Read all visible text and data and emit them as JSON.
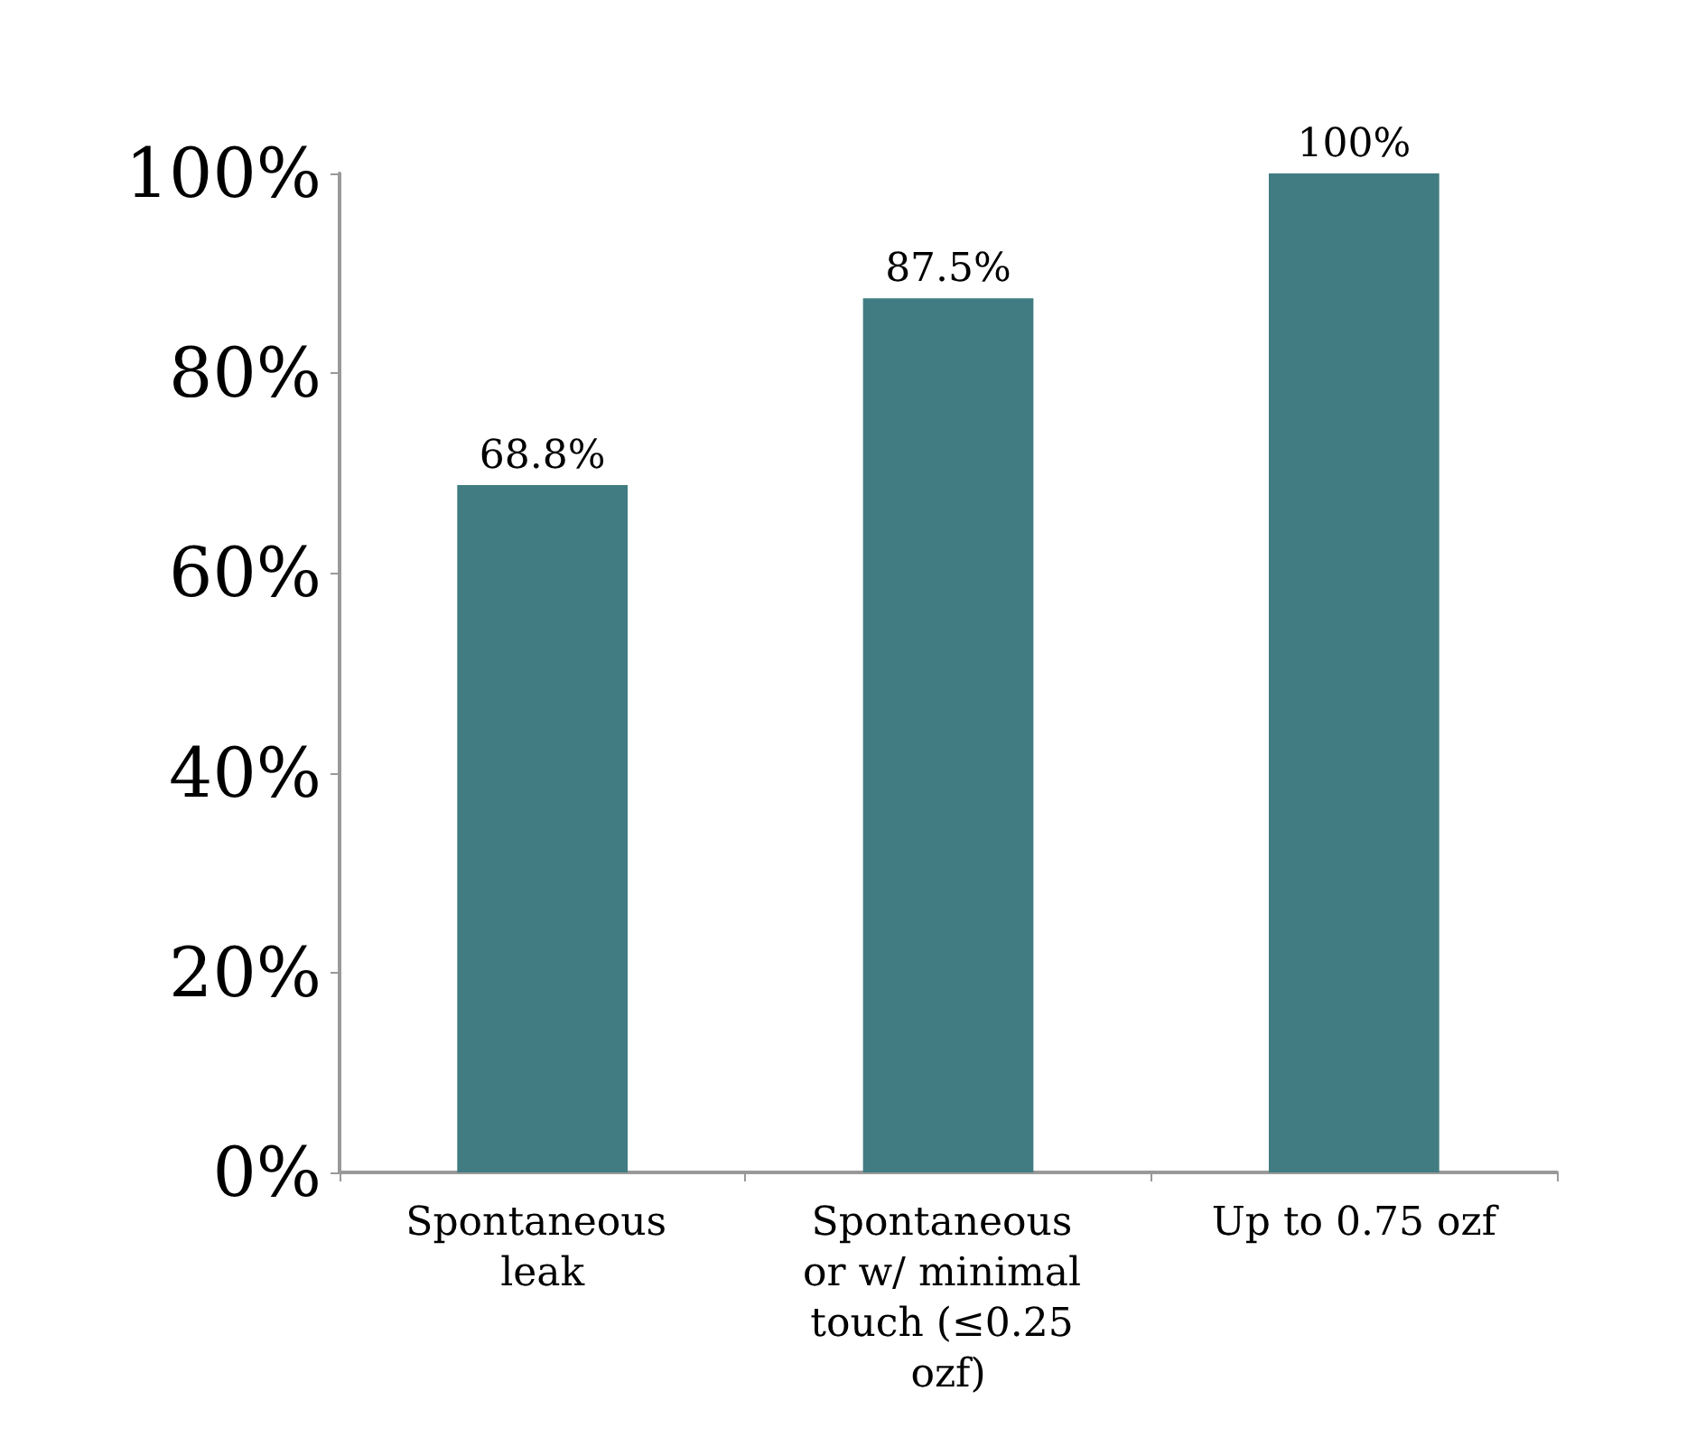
{
  "chart_data": {
    "type": "bar",
    "categories": [
      "Spontaneous leak",
      "Spontaneous or w/ minimal touch (≤0.25 ozf)",
      "Up to 0.75 ozf"
    ],
    "values": [
      68.8,
      87.5,
      100
    ],
    "color": "#417c82",
    "value_labels": [
      "68.8%",
      "87.5%",
      "100%"
    ],
    "ylim": [
      0,
      100
    ],
    "yticks": [
      {
        "value": 0,
        "label": "0%"
      },
      {
        "value": 20,
        "label": "20%"
      },
      {
        "value": 40,
        "label": "40%"
      },
      {
        "value": 60,
        "label": "60%"
      },
      {
        "value": 80,
        "label": "80%"
      },
      {
        "value": 100,
        "label": "100%"
      }
    ],
    "grid": false
  }
}
